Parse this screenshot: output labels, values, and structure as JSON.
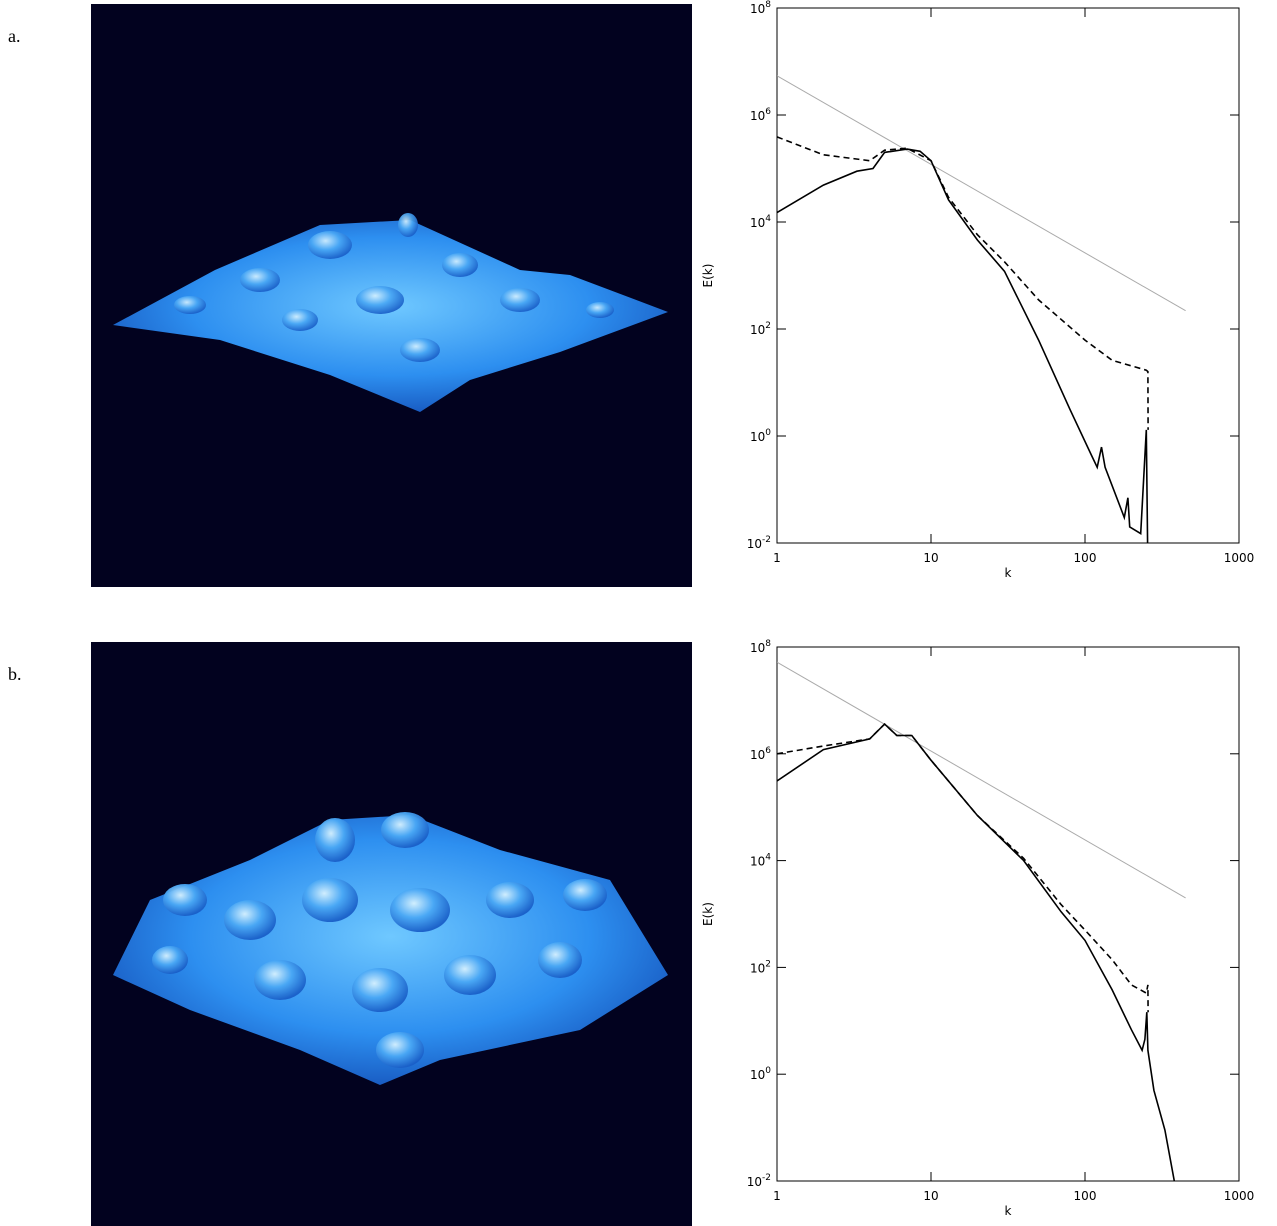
{
  "chart_data": [
    {
      "type": "line",
      "panel_label": "a.",
      "xlabel": "k",
      "ylabel": "E(k)",
      "xscale": "log",
      "yscale": "log",
      "xlim": [
        1,
        1000
      ],
      "ylim": [
        0.01,
        100000000
      ],
      "xticks": [
        1,
        10,
        100,
        1000
      ],
      "yticks": [
        {
          "value": 0.01,
          "label": "10^-2"
        },
        {
          "value": 1,
          "label": "10^0"
        },
        {
          "value": 100,
          "label": "10^2"
        },
        {
          "value": 10000,
          "label": "10^4"
        },
        {
          "value": 1000000,
          "label": "10^6"
        },
        {
          "value": 100000000,
          "label": "10^8"
        }
      ],
      "series": [
        {
          "color": "#aaaaaa",
          "linestyle": "solid",
          "x": [
            1,
            450
          ],
          "values": [
            5400000,
            220
          ]
        },
        {
          "color": "#000000",
          "linestyle": "dashed",
          "x": [
            1,
            2,
            4,
            5,
            7,
            10,
            13,
            20,
            30,
            50,
            100,
            150,
            250,
            256,
            257
          ],
          "values": [
            390000,
            180000,
            140000,
            220000,
            240000,
            140000,
            29000,
            5800,
            1800,
            350,
            62,
            26,
            17,
            16,
            1.3
          ]
        },
        {
          "color": "#000000",
          "linestyle": "solid",
          "x": [
            1,
            2,
            3.3,
            4.2,
            5,
            7,
            8.5,
            10,
            13,
            20,
            30,
            50,
            80,
            110,
            120,
            128,
            135,
            180,
            190,
            195,
            230,
            250,
            256
          ],
          "values": [
            15000,
            49000,
            89000,
            100000,
            200000,
            230000,
            210000,
            140000,
            26000,
            4600,
            1200,
            62,
            3.1,
            0.44,
            0.26,
            0.62,
            0.26,
            0.03,
            0.07,
            0.02,
            0.015,
            1.3,
            0.003
          ]
        }
      ]
    },
    {
      "type": "line",
      "panel_label": "b.",
      "xlabel": "k",
      "ylabel": "E(k)",
      "xscale": "log",
      "yscale": "log",
      "xlim": [
        1,
        1000
      ],
      "ylim": [
        0.01,
        100000000
      ],
      "xticks": [
        1,
        10,
        100,
        1000
      ],
      "yticks": [
        {
          "value": 0.01,
          "label": "10^-2"
        },
        {
          "value": 1,
          "label": "10^0"
        },
        {
          "value": 100,
          "label": "10^2"
        },
        {
          "value": 10000,
          "label": "10^4"
        },
        {
          "value": 1000000,
          "label": "10^6"
        },
        {
          "value": 100000000,
          "label": "10^8"
        }
      ],
      "series": [
        {
          "color": "#aaaaaa",
          "linestyle": "solid",
          "x": [
            1,
            450
          ],
          "values": [
            52000000,
            2000
          ]
        },
        {
          "color": "#000000",
          "linestyle": "dashed",
          "x": [
            1,
            2,
            4,
            5,
            6,
            7.5,
            10,
            20,
            40,
            70,
            100,
            150,
            200,
            250,
            256,
            257
          ],
          "values": [
            1000000,
            1400000,
            1900000,
            3600000,
            2200000,
            2200000,
            760000,
            70000,
            11000,
            1500,
            500,
            140,
            47,
            33,
            47,
            14.5
          ]
        },
        {
          "color": "#000000",
          "linestyle": "solid",
          "x": [
            1,
            2,
            4,
            5,
            6,
            7.5,
            10,
            20,
            40,
            70,
            100,
            150,
            200,
            235,
            245,
            252,
            256,
            280,
            330,
            380,
            400
          ],
          "values": [
            310000,
            1200000,
            1900000,
            3600000,
            2200000,
            2200000,
            760000,
            70000,
            10000,
            1100,
            320,
            38,
            6.8,
            2.8,
            4.5,
            14.5,
            2.8,
            0.5,
            0.09,
            0.01,
            0.004
          ]
        }
      ]
    }
  ]
}
